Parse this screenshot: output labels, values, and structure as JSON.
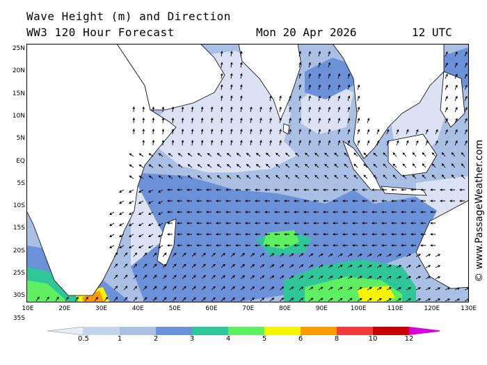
{
  "header": {
    "title_line1": "Wave Height (m) and Direction",
    "title_line2": "WW3 120 Hour Forecast",
    "date": "Mon 20 Apr 2026",
    "time": "12 UTC"
  },
  "credit": "© www.PassageWeather.com",
  "map": {
    "lat_labels": [
      "25N",
      "20N",
      "15N",
      "10N",
      "5N",
      "EQ",
      "5S",
      "10S",
      "15S",
      "20S",
      "25S",
      "30S",
      "35S"
    ],
    "lon_labels": [
      "10E",
      "20E",
      "30E",
      "40E",
      "50E",
      "60E",
      "70E",
      "80E",
      "90E",
      "100E",
      "110E",
      "120E",
      "130E"
    ],
    "land_color": "#ffffff",
    "wave_colors": {
      "lt_0_5": "#f0f2fb",
      "0_5_1": "#dbe2f3",
      "1_2": "#a9bfe4",
      "2_3": "#6b92d8",
      "3_4": "#2fc79a",
      "4_5": "#5ef060",
      "5_6": "#f5f500",
      "6_8": "#ff9a00"
    }
  },
  "legend": {
    "ticks": [
      "0.5",
      "1",
      "2",
      "3",
      "4",
      "5",
      "6",
      "8",
      "10",
      "12"
    ],
    "colors": [
      "#e6ecf8",
      "#c4d4ef",
      "#a9bfe4",
      "#6b92d8",
      "#2fc79a",
      "#5ef060",
      "#f5f500",
      "#ff9a00",
      "#f03c3c",
      "#c40000",
      "#d800d8"
    ]
  }
}
